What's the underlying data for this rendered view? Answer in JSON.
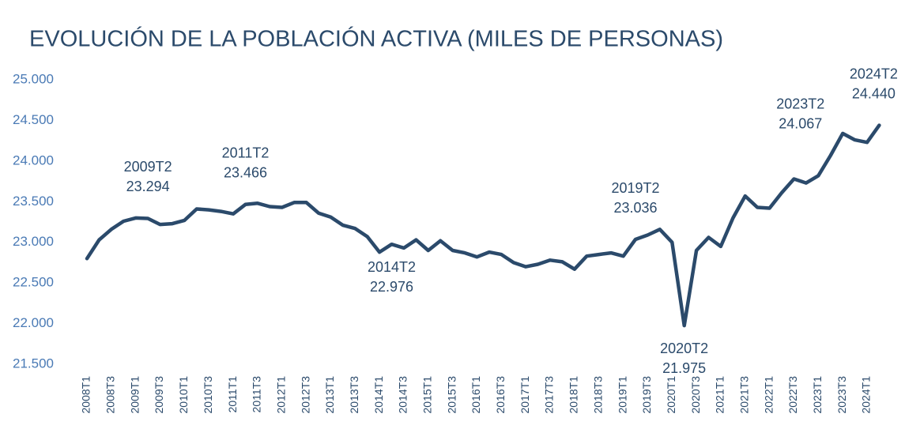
{
  "chart_data": {
    "type": "line",
    "title": "EVOLUCIÓN DE LA POBLACIÓN ACTIVA (MILES DE PERSONAS)",
    "categories": [
      "2008T1",
      null,
      "2008T3",
      null,
      "2009T1",
      null,
      "2009T3",
      null,
      "2010T1",
      null,
      "2010T3",
      null,
      "2011T1",
      null,
      "2011T3",
      null,
      "2012T1",
      null,
      "2012T3",
      null,
      "2013T1",
      null,
      "2013T3",
      null,
      "2014T1",
      null,
      "2014T3",
      null,
      "2015T1",
      null,
      "2015T3",
      null,
      "2016T1",
      null,
      "2016T3",
      null,
      "2017T1",
      null,
      "2017T3",
      null,
      "2018T1",
      null,
      "2018T3",
      null,
      "2019T1",
      null,
      "2019T3",
      null,
      "2020T1",
      null,
      "2020T3",
      null,
      "2021T1",
      null,
      "2021T3",
      null,
      "2022T1",
      null,
      "2022T3",
      null,
      "2023T1",
      null,
      "2023T3",
      null,
      "2024T1",
      null
    ],
    "series": [
      {
        "name": "Población activa",
        "color": "#2b4a6b",
        "values": [
          22800,
          23030,
          23160,
          23260,
          23300,
          23294,
          23220,
          23230,
          23270,
          23410,
          23400,
          23380,
          23350,
          23466,
          23480,
          23440,
          23430,
          23490,
          23490,
          23360,
          23310,
          23210,
          23170,
          23070,
          22880,
          22976,
          22930,
          23030,
          22900,
          23020,
          22900,
          22870,
          22820,
          22880,
          22850,
          22750,
          22700,
          22730,
          22780,
          22760,
          22670,
          22830,
          22850,
          22870,
          22830,
          23036,
          23090,
          23160,
          23000,
          21975,
          22900,
          23060,
          22950,
          23300,
          23570,
          23430,
          23420,
          23610,
          23780,
          23730,
          23820,
          24067,
          24340,
          24260,
          24230,
          24440
        ],
        "point_labels": [
          null,
          null,
          null,
          null,
          null,
          "2009T2",
          null,
          null,
          null,
          null,
          null,
          null,
          null,
          "2011T2",
          null,
          null,
          null,
          null,
          null,
          null,
          null,
          null,
          null,
          null,
          null,
          "2014T2",
          null,
          null,
          null,
          null,
          null,
          null,
          null,
          null,
          null,
          null,
          null,
          null,
          null,
          null,
          null,
          null,
          null,
          null,
          null,
          "2019T2",
          null,
          null,
          null,
          "2020T2",
          null,
          null,
          null,
          null,
          null,
          null,
          null,
          null,
          null,
          null,
          null,
          "2023T2",
          null,
          null,
          null,
          "2024T2"
        ],
        "value_labels": [
          null,
          null,
          null,
          null,
          null,
          "23.294",
          null,
          null,
          null,
          null,
          null,
          null,
          null,
          "23.466",
          null,
          null,
          null,
          null,
          null,
          null,
          null,
          null,
          null,
          null,
          null,
          "22.976",
          null,
          null,
          null,
          null,
          null,
          null,
          null,
          null,
          null,
          null,
          null,
          null,
          null,
          null,
          null,
          null,
          null,
          null,
          null,
          "23.036",
          null,
          null,
          null,
          "21.975",
          null,
          null,
          null,
          null,
          null,
          null,
          null,
          null,
          null,
          null,
          null,
          "24.067",
          null,
          null,
          null,
          "24.440"
        ]
      }
    ],
    "ylim": [
      21500,
      25000
    ],
    "yticks": [
      {
        "value": 21500,
        "label": "21.500"
      },
      {
        "value": 22000,
        "label": "22.000"
      },
      {
        "value": 22500,
        "label": "22.500"
      },
      {
        "value": 23000,
        "label": "23.000"
      },
      {
        "value": 23500,
        "label": "23.500"
      },
      {
        "value": 24000,
        "label": "24.000"
      },
      {
        "value": 24500,
        "label": "24.500"
      },
      {
        "value": 25000,
        "label": "25.000"
      }
    ],
    "grid": false
  }
}
